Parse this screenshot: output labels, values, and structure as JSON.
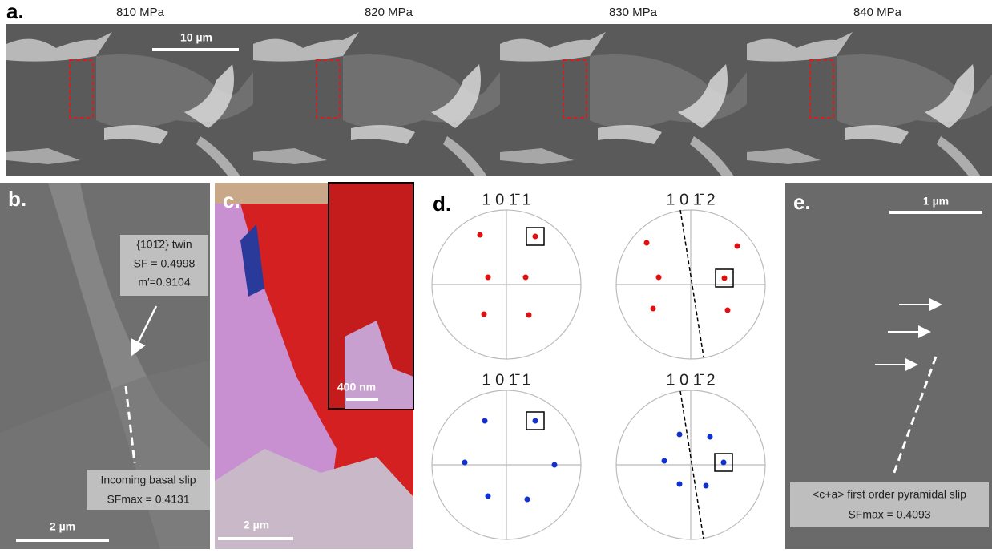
{
  "panel_a": {
    "label": "a.",
    "titles": [
      "810 MPa",
      "820 MPa",
      "830 MPa",
      "840 MPa"
    ],
    "scale_bar": "10 µm"
  },
  "panel_b": {
    "label": "b.",
    "twin_label": "{101̄2} twin",
    "sf": "SF = 0.4998",
    "m_prime": "m′=0.9104",
    "slip_label": "Incoming basal slip",
    "sf_max": "SFmax = 0.4131",
    "scale_bar": "2 µm"
  },
  "panel_c": {
    "label": "c.",
    "scale_bar": "2 µm",
    "inset_scale_bar": "400 nm"
  },
  "panel_d": {
    "label": "d.",
    "pole_figures": [
      "1 0 1̄ 1",
      "1 0 1̄ 2",
      "1 0 1̄ 1",
      "1 0 1̄ 2"
    ]
  },
  "panel_e": {
    "label": "e.",
    "scale_bar": "1 µm",
    "slip_label": "<c+a> first order pyramidal slip",
    "sf_max": "SFmax =  0.4093"
  }
}
